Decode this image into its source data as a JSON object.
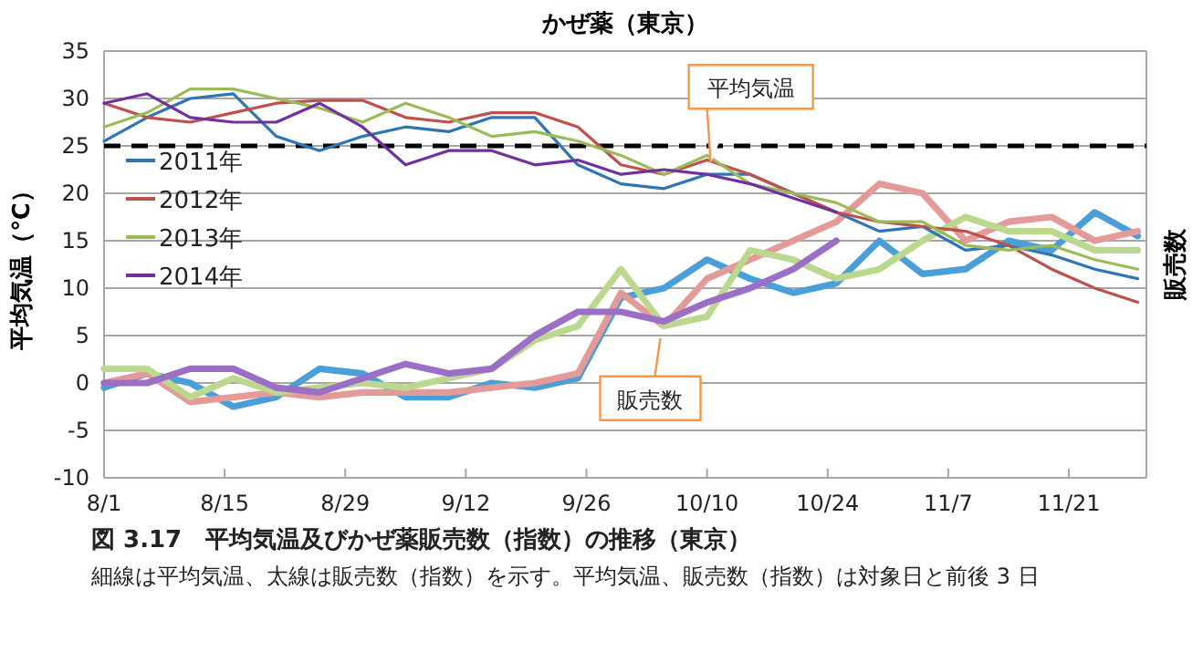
{
  "chart_data": {
    "type": "line",
    "title": "かぜ薬（東京）",
    "ylabel": "平均気温（℃）",
    "y2label": "販売数",
    "x": [
      "--08-01",
      "--08-06",
      "--08-11",
      "--08-16",
      "--08-21",
      "--08-26",
      "--08-31",
      "--09-05",
      "--09-10",
      "--09-15",
      "--09-20",
      "--09-25",
      "--09-30",
      "--10-05",
      "--10-10",
      "--10-15",
      "--10-20",
      "--10-25",
      "--10-30",
      "--11-04",
      "--11-09",
      "--11-14",
      "--11-19",
      "--11-24",
      "--11-29"
    ],
    "xlim": [
      "--08-01",
      "--11-30"
    ],
    "xticks": [
      {
        "value": "--08-01",
        "label": "8/1"
      },
      {
        "value": "--08-15",
        "label": "8/15"
      },
      {
        "value": "--08-29",
        "label": "8/29"
      },
      {
        "value": "--09-12",
        "label": "9/12"
      },
      {
        "value": "--09-26",
        "label": "9/26"
      },
      {
        "value": "--10-10",
        "label": "10/10"
      },
      {
        "value": "--10-24",
        "label": "10/24"
      },
      {
        "value": "--11-07",
        "label": "11/7"
      },
      {
        "value": "--11-21",
        "label": "11/21"
      }
    ],
    "ylim": [
      -10,
      35
    ],
    "yticks": [
      -10,
      -5,
      0,
      5,
      10,
      15,
      20,
      25,
      30,
      35
    ],
    "grid": "y",
    "legend": "left",
    "marker": "none",
    "line_style": "solid",
    "ref_lines": [
      {
        "axis": "y",
        "value": 25,
        "color": "#000000",
        "line_style": "dashed"
      }
    ],
    "series": [
      {
        "name": "2011年",
        "color": "#2e75b6",
        "values": [
          25.5,
          28,
          30,
          30.5,
          26,
          24.5,
          26,
          27,
          26.5,
          28,
          28,
          23,
          21,
          20.5,
          22,
          22,
          20,
          18,
          16,
          16.5,
          14,
          14.5,
          13.5,
          12,
          11
        ]
      },
      {
        "name": "2012年",
        "color": "#c0504d",
        "values": [
          29.5,
          28,
          27.5,
          28.5,
          29.5,
          29.8,
          29.8,
          28,
          27.5,
          28.5,
          28.5,
          27,
          23,
          22,
          23.5,
          22,
          20,
          18,
          17,
          16.5,
          16,
          14.5,
          12,
          10,
          8.5
        ]
      },
      {
        "name": "2013年",
        "color": "#9bbb59",
        "values": [
          27,
          28.5,
          31,
          31,
          30,
          29,
          27.5,
          29.5,
          28,
          26,
          26.5,
          25.5,
          24,
          22,
          24,
          21,
          20,
          19,
          17,
          17,
          14.5,
          14,
          14.5,
          13,
          12
        ]
      },
      {
        "name": "2014年",
        "color": "#7030a0",
        "values": [
          29.5,
          30.5,
          28,
          27.5,
          27.5,
          29.5,
          27,
          23,
          24.5,
          24.5,
          23,
          23.5,
          22,
          22.5,
          22,
          21,
          19.5,
          18,
          null,
          null,
          null,
          null,
          null,
          null,
          null
        ]
      },
      {
        "color": "#4a9fd8",
        "values": [
          -0.5,
          1,
          0,
          -2.5,
          -1.5,
          1.5,
          1,
          -1.5,
          -1.5,
          0,
          -0.5,
          0.5,
          9,
          10,
          13,
          11,
          9.5,
          10.5,
          15,
          11.5,
          12,
          15,
          14,
          18,
          15.5
        ]
      },
      {
        "color": "#e39a98",
        "values": [
          0,
          1,
          -2,
          -1.5,
          -1,
          -1.5,
          -1,
          -1,
          -1,
          -0.5,
          0,
          1,
          9.5,
          6,
          11,
          13,
          15,
          17,
          21,
          20,
          15,
          17,
          17.5,
          15,
          16
        ]
      },
      {
        "color": "#bcd88e",
        "values": [
          1.5,
          1.5,
          -1.5,
          0.5,
          -1,
          -0.5,
          0,
          -0.5,
          0.5,
          1.5,
          4.5,
          6,
          12,
          6,
          7,
          14,
          13,
          11,
          12,
          15,
          17.5,
          16,
          16,
          14,
          14
        ]
      },
      {
        "color": "#9b6fc5",
        "values": [
          0,
          0,
          1.5,
          1.5,
          -0.5,
          -1,
          0.5,
          2,
          1,
          1.5,
          5,
          7.5,
          7.5,
          6.5,
          8.5,
          10,
          12,
          15,
          null,
          null,
          null,
          null,
          null,
          null,
          null
        ]
      }
    ],
    "annotations": [
      {
        "text": "平均気温",
        "x": "--10-10",
        "y": 22
      },
      {
        "text": "販売数",
        "x": "--10-05",
        "y": 5.5
      },
      "図 3.17　平均気温及びかぜ薬販売数（指数）の推移（東京）",
      "細線は平均気温、太線は販売数（指数）を示す。平均気温、販売数（指数）は対象日と前後 3 日"
    ]
  }
}
